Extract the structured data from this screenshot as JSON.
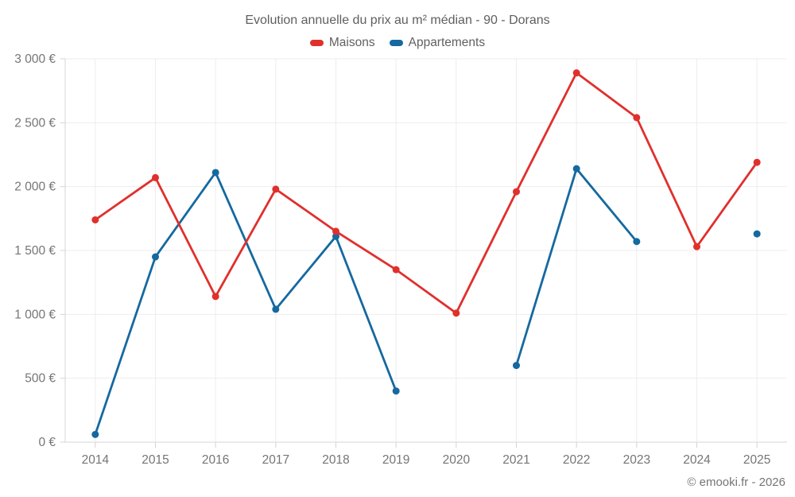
{
  "title": "Evolution annuelle du prix au m² médian - 90 - Dorans",
  "footer": {
    "copyright": "© emooki.fr - 2026"
  },
  "chart_data": {
    "type": "line",
    "title": "Evolution annuelle du prix au m² médian - 90 - Dorans",
    "categories": [
      "2014",
      "2015",
      "2016",
      "2017",
      "2018",
      "2019",
      "2020",
      "2021",
      "2022",
      "2023",
      "2024",
      "2025"
    ],
    "series": [
      {
        "name": "Maisons",
        "color": "#e0302c",
        "values": [
          1740,
          2070,
          1140,
          1980,
          1650,
          1350,
          1010,
          1960,
          2890,
          2540,
          1530,
          2190
        ]
      },
      {
        "name": "Appartements",
        "color": "#1569a0",
        "values": [
          60,
          1450,
          2110,
          1040,
          1610,
          400,
          null,
          600,
          2140,
          1570,
          null,
          1630
        ]
      }
    ],
    "xlabel": "",
    "ylabel": "",
    "ylim": [
      0,
      3000
    ],
    "ytick_step": 500,
    "ytick_labels": [
      "0 €",
      "500 €",
      "1 000 €",
      "1 500 €",
      "2 000 €",
      "2 500 €",
      "3 000 €"
    ],
    "grid": true,
    "legend_position": "top",
    "currency": "EUR"
  }
}
